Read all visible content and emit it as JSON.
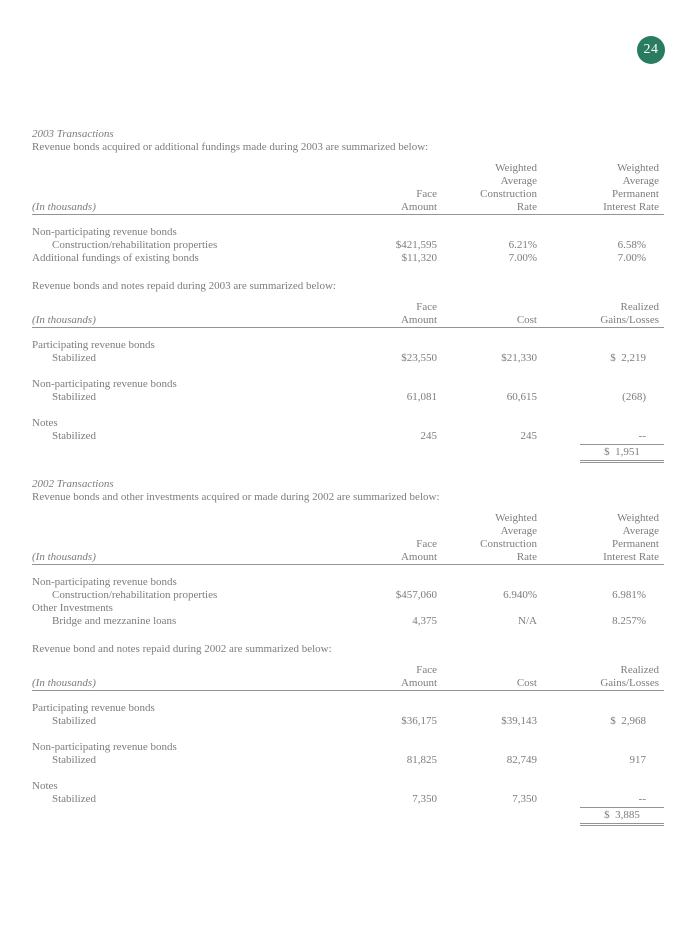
{
  "page_number": "24",
  "badge_color": "#2a7c60",
  "labels": {
    "in_thousands": "(In thousands)"
  },
  "sections": [
    {
      "title": "2003 Transactions",
      "intro": "Revenue bonds acquired or additional fundings made during 2003 are summarized below:",
      "table": {
        "columns": [
          "Face\nAmount",
          "Weighted\nAverage\nConstruction\nRate",
          "Weighted\nAverage\nPermanent\nInterest Rate"
        ],
        "rows": [
          {
            "label": "Non-participating revenue bonds",
            "indent": false,
            "values": [
              "",
              "",
              ""
            ]
          },
          {
            "label": "Construction/rehabilitation properties",
            "indent": true,
            "values": [
              "$421,595",
              "6.21%",
              "6.58%"
            ]
          },
          {
            "label": "Additional fundings of existing bonds",
            "indent": false,
            "values": [
              "$11,320",
              "7.00%",
              "7.00%"
            ]
          }
        ],
        "total": null
      }
    },
    {
      "title": null,
      "intro": "Revenue bonds and notes repaid during 2003 are summarized below:",
      "table": {
        "columns": [
          "Face\nAmount",
          "Cost",
          "Realized\nGains/Losses"
        ],
        "rows": [
          {
            "label": "Participating revenue bonds",
            "indent": false,
            "values": [
              "",
              "",
              ""
            ]
          },
          {
            "label": "Stabilized",
            "indent": true,
            "values": [
              "$23,550",
              "$21,330",
              "$  2,219"
            ]
          },
          {
            "spacer": true
          },
          {
            "label": "Non-participating revenue bonds",
            "indent": false,
            "values": [
              "",
              "",
              ""
            ]
          },
          {
            "label": "Stabilized",
            "indent": true,
            "values": [
              "61,081",
              "60,615",
              "(268)"
            ]
          },
          {
            "spacer": true
          },
          {
            "label": "Notes",
            "indent": false,
            "values": [
              "",
              "",
              ""
            ]
          },
          {
            "label": "Stabilized",
            "indent": true,
            "values": [
              "245",
              "245",
              "--"
            ]
          }
        ],
        "total": "$  1,951"
      }
    },
    {
      "title": "2002 Transactions",
      "intro": "Revenue bonds and other investments acquired or made during 2002 are summarized below:",
      "table": {
        "columns": [
          "Face\nAmount",
          "Weighted\nAverage\nConstruction\nRate",
          "Weighted\nAverage\nPermanent\nInterest Rate"
        ],
        "rows": [
          {
            "label": "Non-participating revenue bonds",
            "indent": false,
            "values": [
              "",
              "",
              ""
            ]
          },
          {
            "label": "Construction/rehabilitation properties",
            "indent": true,
            "values": [
              "$457,060",
              "6.940%",
              "6.981%"
            ]
          },
          {
            "label": "Other Investments",
            "indent": false,
            "values": [
              "",
              "",
              ""
            ]
          },
          {
            "label": "Bridge and mezzanine loans",
            "indent": true,
            "values": [
              "4,375",
              "N/A",
              "8.257%"
            ]
          }
        ],
        "total": null
      }
    },
    {
      "title": null,
      "intro": "Revenue bond and notes repaid during 2002 are summarized below:",
      "table": {
        "columns": [
          "Face\nAmount",
          "Cost",
          "Realized\nGains/Losses"
        ],
        "rows": [
          {
            "label": "Participating revenue bonds",
            "indent": false,
            "values": [
              "",
              "",
              ""
            ]
          },
          {
            "label": "Stabilized",
            "indent": true,
            "values": [
              "$36,175",
              "$39,143",
              "$  2,968"
            ]
          },
          {
            "spacer": true
          },
          {
            "label": "Non-participating revenue bonds",
            "indent": false,
            "values": [
              "",
              "",
              ""
            ]
          },
          {
            "label": "Stabilized",
            "indent": true,
            "values": [
              "81,825",
              "82,749",
              "917"
            ]
          },
          {
            "spacer": true
          },
          {
            "label": "Notes",
            "indent": false,
            "values": [
              "",
              "",
              ""
            ]
          },
          {
            "label": "Stabilized",
            "indent": true,
            "values": [
              "7,350",
              "7,350",
              "--"
            ]
          }
        ],
        "total": "$  3,885"
      }
    }
  ]
}
